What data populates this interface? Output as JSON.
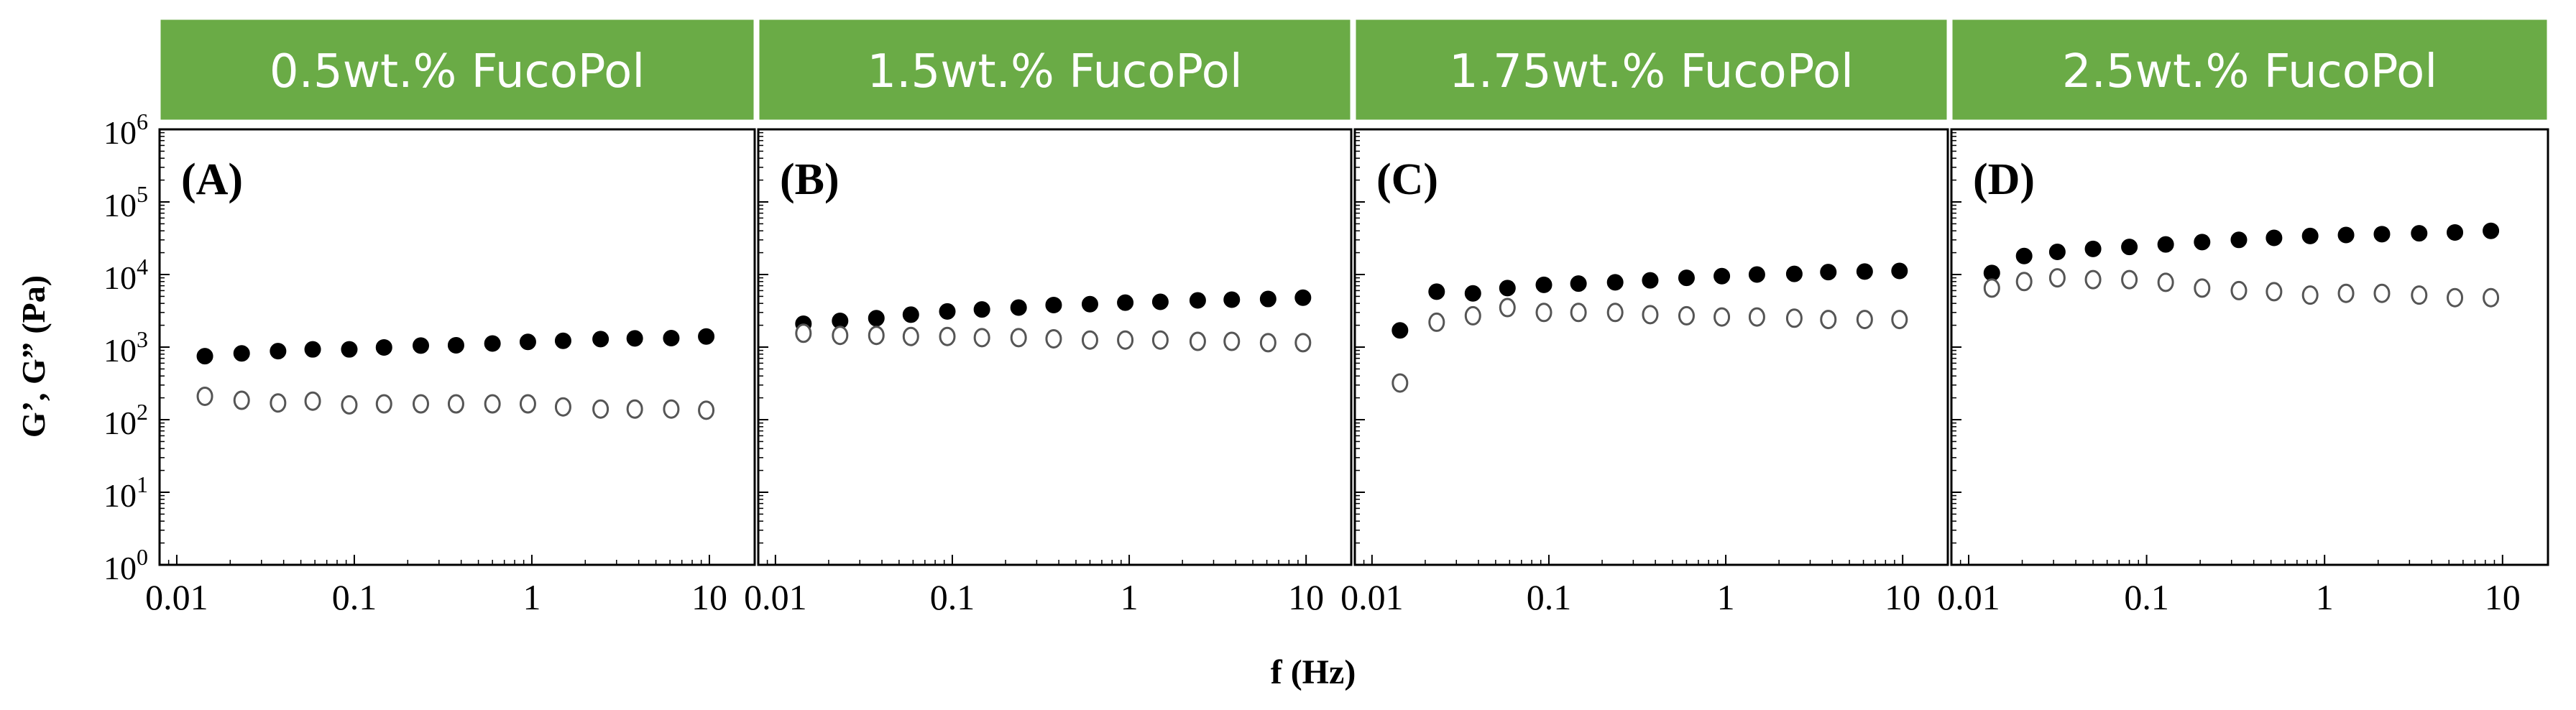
{
  "figure": {
    "xlabel": "f (Hz)",
    "ylabel": "G’, G” (Pa)"
  },
  "styles": {
    "header_color": "#6aab46",
    "header_border": "#ffffff",
    "frame_color": "#000000",
    "filled_marker": "#000000",
    "open_marker": "#555555"
  },
  "chart_data": [
    {
      "type": "scatter",
      "header": "0.5wt.% FucoPol",
      "panel_label": "(A)",
      "xscale": "log",
      "yscale": "log",
      "xlim": [
        0.008,
        18
      ],
      "ylim": [
        1,
        1000000
      ],
      "xticks": [
        {
          "v": 0.01,
          "label": "0.01"
        },
        {
          "v": 0.1,
          "label": "0.1"
        },
        {
          "v": 1,
          "label": "1"
        },
        {
          "v": 10,
          "label": "10"
        }
      ],
      "yticks": [
        {
          "v": 1,
          "base": "10",
          "exp": "0"
        },
        {
          "v": 10,
          "base": "10",
          "exp": "1"
        },
        {
          "v": 100,
          "base": "10",
          "exp": "2"
        },
        {
          "v": 1000,
          "base": "10",
          "exp": "3"
        },
        {
          "v": 10000,
          "base": "10",
          "exp": "4"
        },
        {
          "v": 100000,
          "base": "10",
          "exp": "5"
        },
        {
          "v": 1000000,
          "base": "10",
          "exp": "6"
        }
      ],
      "series": [
        {
          "name": "G'",
          "marker": "filled",
          "x": [
            0.0144,
            0.0232,
            0.0372,
            0.0583,
            0.0937,
            0.147,
            0.237,
            0.374,
            0.6,
            0.95,
            1.5,
            2.44,
            3.8,
            6.1,
            9.6
          ],
          "y": [
            750,
            820,
            880,
            930,
            930,
            990,
            1050,
            1060,
            1120,
            1180,
            1220,
            1290,
            1320,
            1330,
            1400
          ]
        },
        {
          "name": "G''",
          "marker": "open",
          "x": [
            0.0144,
            0.0232,
            0.0372,
            0.0583,
            0.0937,
            0.147,
            0.237,
            0.374,
            0.6,
            0.95,
            1.5,
            2.44,
            3.8,
            6.1,
            9.6
          ],
          "y": [
            210,
            185,
            170,
            180,
            160,
            165,
            165,
            165,
            165,
            165,
            150,
            140,
            140,
            140,
            135
          ]
        }
      ]
    },
    {
      "type": "scatter",
      "header": "1.5wt.% FucoPol",
      "panel_label": "(B)",
      "xscale": "log",
      "yscale": "log",
      "xlim": [
        0.008,
        18
      ],
      "ylim": [
        1,
        1000000
      ],
      "xticks": [
        {
          "v": 0.01,
          "label": "0.01"
        },
        {
          "v": 0.1,
          "label": "0.1"
        },
        {
          "v": 1,
          "label": "1"
        },
        {
          "v": 10,
          "label": "10"
        }
      ],
      "yticks": [
        {
          "v": 1
        },
        {
          "v": 10
        },
        {
          "v": 100
        },
        {
          "v": 1000
        },
        {
          "v": 10000
        },
        {
          "v": 100000
        },
        {
          "v": 1000000
        }
      ],
      "series": [
        {
          "name": "G'",
          "marker": "filled",
          "x": [
            0.0144,
            0.0232,
            0.0372,
            0.0583,
            0.0937,
            0.147,
            0.237,
            0.374,
            0.6,
            0.95,
            1.5,
            2.44,
            3.8,
            6.1,
            9.6
          ],
          "y": [
            2100,
            2300,
            2500,
            2800,
            3100,
            3300,
            3500,
            3800,
            3900,
            4100,
            4200,
            4400,
            4500,
            4600,
            4800
          ]
        },
        {
          "name": "G''",
          "marker": "open",
          "x": [
            0.0144,
            0.0232,
            0.0372,
            0.0583,
            0.0937,
            0.147,
            0.237,
            0.374,
            0.6,
            0.95,
            1.5,
            2.44,
            3.8,
            6.1,
            9.6
          ],
          "y": [
            1550,
            1450,
            1450,
            1400,
            1400,
            1350,
            1350,
            1300,
            1250,
            1250,
            1250,
            1200,
            1200,
            1150,
            1150
          ]
        }
      ]
    },
    {
      "type": "scatter",
      "header": "1.75wt.% FucoPol",
      "panel_label": "(C)",
      "xscale": "log",
      "yscale": "log",
      "xlim": [
        0.008,
        18
      ],
      "ylim": [
        1,
        1000000
      ],
      "xticks": [
        {
          "v": 0.01,
          "label": "0.01"
        },
        {
          "v": 0.1,
          "label": "0.1"
        },
        {
          "v": 1,
          "label": "1"
        },
        {
          "v": 10,
          "label": "10"
        }
      ],
      "yticks": [
        {
          "v": 1
        },
        {
          "v": 10
        },
        {
          "v": 100
        },
        {
          "v": 1000
        },
        {
          "v": 10000
        },
        {
          "v": 100000
        },
        {
          "v": 1000000
        }
      ],
      "series": [
        {
          "name": "G'",
          "marker": "filled",
          "x": [
            0.0144,
            0.0232,
            0.0372,
            0.0583,
            0.0937,
            0.147,
            0.237,
            0.374,
            0.6,
            0.95,
            1.5,
            2.44,
            3.8,
            6.1,
            9.6
          ],
          "y": [
            1700,
            5800,
            5500,
            6500,
            7200,
            7500,
            7800,
            8300,
            9000,
            9500,
            10000,
            10200,
            10800,
            11000,
            11200
          ]
        },
        {
          "name": "G''",
          "marker": "open",
          "x": [
            0.0144,
            0.0232,
            0.0372,
            0.0583,
            0.0937,
            0.147,
            0.237,
            0.374,
            0.6,
            0.95,
            1.5,
            2.44,
            3.8,
            6.1,
            9.6
          ],
          "y": [
            320,
            2200,
            2700,
            3500,
            3000,
            3000,
            3000,
            2800,
            2700,
            2600,
            2600,
            2500,
            2400,
            2400,
            2400
          ]
        }
      ]
    },
    {
      "type": "scatter",
      "header": "2.5wt.% FucoPol",
      "panel_label": "(D)",
      "xscale": "log",
      "yscale": "log",
      "xlim": [
        0.008,
        18
      ],
      "ylim": [
        1,
        1000000
      ],
      "xticks": [
        {
          "v": 0.01,
          "label": "0.01"
        },
        {
          "v": 0.1,
          "label": "0.1"
        },
        {
          "v": 1,
          "label": "1"
        },
        {
          "v": 10,
          "label": "10"
        }
      ],
      "yticks": [
        {
          "v": 1
        },
        {
          "v": 10
        },
        {
          "v": 100
        },
        {
          "v": 1000
        },
        {
          "v": 10000
        },
        {
          "v": 100000
        },
        {
          "v": 1000000
        }
      ],
      "series": [
        {
          "name": "G'",
          "marker": "filled",
          "x": [
            0.0135,
            0.0205,
            0.0315,
            0.05,
            0.08,
            0.128,
            0.205,
            0.33,
            0.52,
            0.83,
            1.32,
            2.1,
            3.4,
            5.4,
            8.6
          ],
          "y": [
            10500,
            18000,
            20500,
            22500,
            24000,
            26000,
            28000,
            30000,
            32000,
            34000,
            35000,
            36000,
            37000,
            38000,
            40000
          ]
        },
        {
          "name": "G''",
          "marker": "open",
          "x": [
            0.0135,
            0.0205,
            0.0315,
            0.05,
            0.08,
            0.128,
            0.205,
            0.33,
            0.52,
            0.83,
            1.32,
            2.1,
            3.4,
            5.4,
            8.6
          ],
          "y": [
            6500,
            8000,
            9000,
            8500,
            8500,
            7800,
            6500,
            6000,
            5800,
            5200,
            5500,
            5500,
            5200,
            4800,
            4800
          ]
        }
      ]
    }
  ]
}
